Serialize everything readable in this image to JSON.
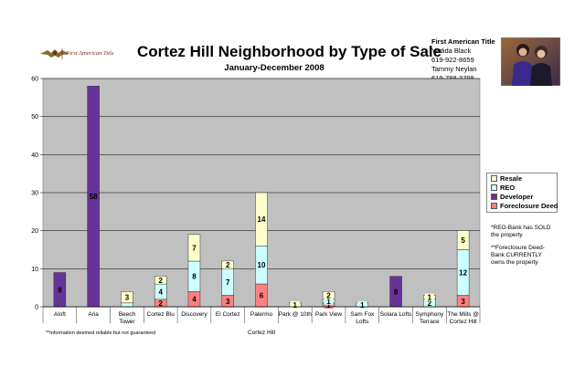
{
  "header": {
    "logo_text": "First American Title",
    "title": "Cortez Hill Neighborhood by Type of Sale",
    "subtitle": "January-December 2008",
    "contact": {
      "company": "First American Title",
      "name1": "Yadida Black",
      "phone1": "619-922-8659",
      "name2": "Tammy Neylan",
      "phone2": "619-788-3798"
    }
  },
  "colors": {
    "resale": "#ffffcc",
    "reo": "#ccffff",
    "developer": "#663399",
    "foreclosure": "#ff8080",
    "plot_bg": "#c0c0c0"
  },
  "notes": {
    "reo_note": "*REO-Bank has SOLD the property",
    "foreclosure_note": "**Foreclosure Deed-Bank CURRENTLY owns the property",
    "footnote": "**Information deemed reliable but not guaranteed"
  },
  "chart_data": {
    "type": "bar",
    "stacked": true,
    "xlabel": "Cortez Hill",
    "ylabel": "",
    "ylim": [
      0,
      60
    ],
    "yticks": [
      0,
      10,
      20,
      30,
      40,
      50,
      60
    ],
    "grid": true,
    "legend_position": "right",
    "categories": [
      [
        "Aloft"
      ],
      [
        "Aria"
      ],
      [
        "Beech",
        "Tower"
      ],
      [
        "Cortez Blu"
      ],
      [
        "Discovery"
      ],
      [
        "El Cortez"
      ],
      [
        "Palermo"
      ],
      [
        "Park @ 10th"
      ],
      [
        "Park View"
      ],
      [
        "Sam Fox",
        "Lofts"
      ],
      [
        "Solara Lofts"
      ],
      [
        "Symphony",
        "Terrace"
      ],
      [
        "The Mills @",
        "Cortez Hill"
      ]
    ],
    "series": [
      {
        "name": "Foreclosure Deed",
        "color": "#ff8080",
        "values": [
          0,
          0,
          0,
          2,
          4,
          3,
          6,
          0,
          1,
          0,
          0,
          0,
          3
        ]
      },
      {
        "name": "Developer",
        "color": "#663399",
        "values": [
          9,
          58,
          0,
          0,
          0,
          0,
          0,
          0,
          0,
          0,
          8,
          0,
          0
        ]
      },
      {
        "name": "REO",
        "color": "#ccffff",
        "values": [
          0,
          0,
          1,
          4,
          8,
          7,
          10,
          0,
          1,
          1,
          0,
          2,
          12
        ]
      },
      {
        "name": "Resale",
        "color": "#ffffcc",
        "values": [
          0,
          0,
          3,
          2,
          7,
          2,
          14,
          1,
          2,
          0,
          0,
          1,
          5
        ]
      }
    ],
    "legend_order": [
      "Resale",
      "REO",
      "Developer",
      "Foreclosure Deed"
    ],
    "data_labels": [
      {
        "category": 0,
        "series": "Developer",
        "text": "9"
      },
      {
        "category": 1,
        "series": "Developer",
        "text": "58"
      },
      {
        "category": 2,
        "series": "Resale",
        "text": "3"
      },
      {
        "category": 3,
        "series": "Foreclosure Deed",
        "text": "2"
      },
      {
        "category": 3,
        "series": "REO",
        "text": "4"
      },
      {
        "category": 3,
        "series": "Resale",
        "text": "2"
      },
      {
        "category": 4,
        "series": "Foreclosure Deed",
        "text": "4"
      },
      {
        "category": 4,
        "series": "REO",
        "text": "8"
      },
      {
        "category": 4,
        "series": "Resale",
        "text": "7"
      },
      {
        "category": 5,
        "series": "Foreclosure Deed",
        "text": "3"
      },
      {
        "category": 5,
        "series": "REO",
        "text": "7"
      },
      {
        "category": 5,
        "series": "Resale",
        "text": "2"
      },
      {
        "category": 6,
        "series": "Foreclosure Deed",
        "text": "6"
      },
      {
        "category": 6,
        "series": "REO",
        "text": "10"
      },
      {
        "category": 6,
        "series": "Resale",
        "text": "14"
      },
      {
        "category": 7,
        "series": "Resale",
        "text": "1"
      },
      {
        "category": 8,
        "series": "Foreclosure Deed",
        "text": "1"
      },
      {
        "category": 8,
        "series": "REO",
        "text": "1"
      },
      {
        "category": 8,
        "series": "Resale",
        "text": "2"
      },
      {
        "category": 9,
        "series": "REO",
        "text": "1"
      },
      {
        "category": 10,
        "series": "Developer",
        "text": "8"
      },
      {
        "category": 11,
        "series": "REO",
        "text": "2"
      },
      {
        "category": 11,
        "series": "Resale",
        "text": "1"
      },
      {
        "category": 12,
        "series": "Foreclosure Deed",
        "text": "3"
      },
      {
        "category": 12,
        "series": "REO",
        "text": "12"
      },
      {
        "category": 12,
        "series": "Resale",
        "text": "5"
      }
    ]
  }
}
